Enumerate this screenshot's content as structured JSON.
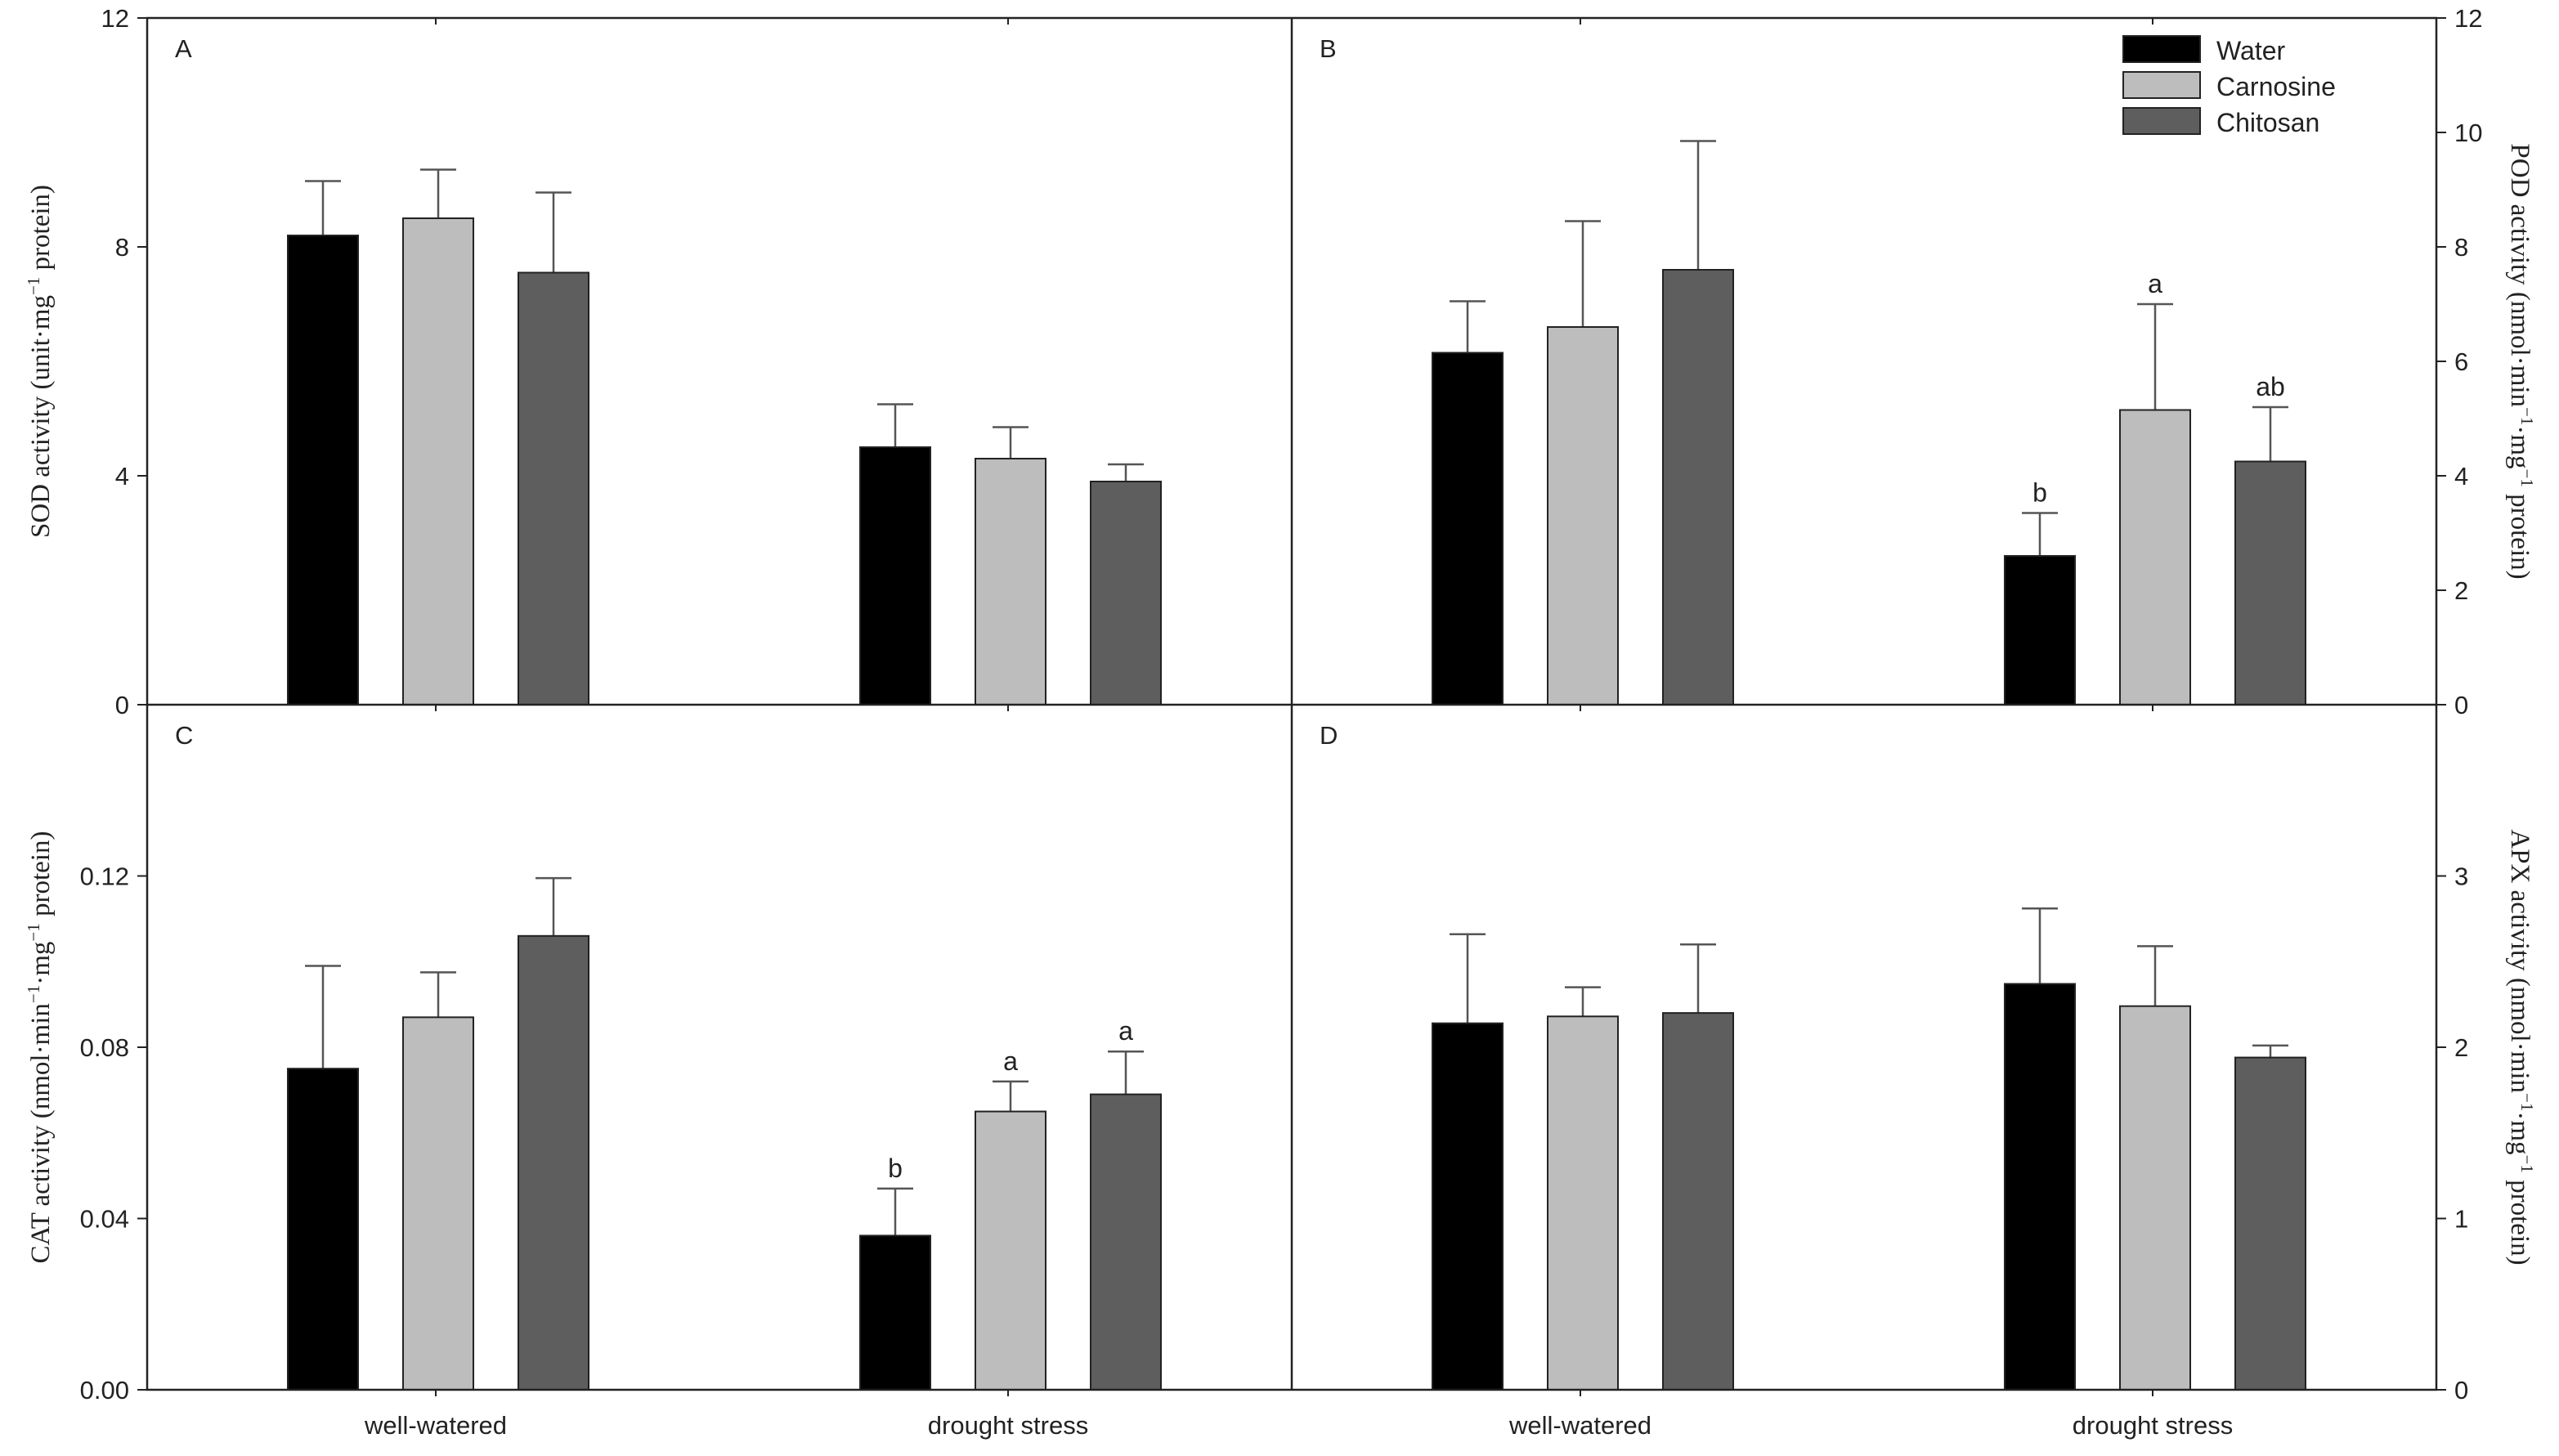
{
  "chart_data": [
    {
      "id": "A",
      "type": "bar",
      "panel_label": "A",
      "categories": [
        "well-watered",
        "drought stress"
      ],
      "series": [
        {
          "name": "Water",
          "values": [
            8.2,
            4.5
          ],
          "errors": [
            0.95,
            0.75
          ]
        },
        {
          "name": "Carnosine",
          "values": [
            8.5,
            4.3
          ],
          "errors": [
            0.85,
            0.55
          ]
        },
        {
          "name": "Chitosan",
          "values": [
            7.55,
            3.9
          ],
          "errors": [
            1.4,
            0.3
          ]
        }
      ],
      "ylim": [
        0,
        12
      ],
      "yticks": [
        "0",
        "4",
        "8",
        "12"
      ],
      "ylabel": {
        "main": "SOD activity (unit·mg",
        "sup": "−1",
        "tail": " protein)"
      },
      "axis_side": "left",
      "annotations": [
        [
          "",
          "",
          ""
        ],
        [
          "",
          "",
          ""
        ]
      ]
    },
    {
      "id": "B",
      "type": "bar",
      "panel_label": "B",
      "categories": [
        "well-watered",
        "drought stress"
      ],
      "series": [
        {
          "name": "Water",
          "values": [
            6.15,
            2.6
          ],
          "errors": [
            0.9,
            0.75
          ]
        },
        {
          "name": "Carnosine",
          "values": [
            6.6,
            5.15
          ],
          "errors": [
            1.85,
            1.85
          ]
        },
        {
          "name": "Chitosan",
          "values": [
            7.6,
            4.25
          ],
          "errors": [
            2.25,
            0.95
          ]
        }
      ],
      "ylim": [
        0,
        12
      ],
      "yticks": [
        "0",
        "2",
        "4",
        "6",
        "8",
        "10",
        "12"
      ],
      "ylabel": {
        "main": "POD activity (nmol·min",
        "sup": "−1",
        "mid": "·mg",
        "sup2": "−1",
        "tail": " protein)"
      },
      "axis_side": "right",
      "annotations": [
        [
          "",
          "",
          ""
        ],
        [
          "b",
          "a",
          "ab"
        ]
      ]
    },
    {
      "id": "C",
      "type": "bar",
      "panel_label": "C",
      "categories": [
        "well-watered",
        "drought stress"
      ],
      "series": [
        {
          "name": "Water",
          "values": [
            0.075,
            0.036
          ],
          "errors": [
            0.024,
            0.011
          ]
        },
        {
          "name": "Carnosine",
          "values": [
            0.087,
            0.065
          ],
          "errors": [
            0.0105,
            0.007
          ]
        },
        {
          "name": "Chitosan",
          "values": [
            0.106,
            0.069
          ],
          "errors": [
            0.0135,
            0.01
          ]
        }
      ],
      "ylim": [
        0,
        0.16
      ],
      "yticks": [
        "0.00",
        "0.04",
        "0.08",
        "0.12"
      ],
      "ylabel": {
        "main": "CAT activity  (nmol·min",
        "sup": "−1",
        "mid": "·mg",
        "sup2": "−1",
        "tail": " protein)"
      },
      "axis_side": "left",
      "annotations": [
        [
          "",
          "",
          ""
        ],
        [
          "b",
          "a",
          "a"
        ]
      ]
    },
    {
      "id": "D",
      "type": "bar",
      "panel_label": "D",
      "categories": [
        "well-watered",
        "drought stress"
      ],
      "series": [
        {
          "name": "Water",
          "values": [
            2.14,
            2.37
          ],
          "errors": [
            0.52,
            0.44
          ]
        },
        {
          "name": "Carnosine",
          "values": [
            2.18,
            2.24
          ],
          "errors": [
            0.17,
            0.35
          ]
        },
        {
          "name": "Chitosan",
          "values": [
            2.2,
            1.94
          ],
          "errors": [
            0.4,
            0.07
          ]
        }
      ],
      "ylim": [
        0,
        4
      ],
      "yticks": [
        "0",
        "1",
        "2",
        "3"
      ],
      "ylabel": {
        "main": "APX activity (nmol·min",
        "sup": "−1",
        "mid": "·mg",
        "sup2": "−1",
        "tail": " protein)"
      },
      "axis_side": "right",
      "annotations": [
        [
          "",
          "",
          ""
        ],
        [
          "",
          "",
          ""
        ]
      ]
    }
  ],
  "legend": {
    "position": "top-right of panel B",
    "items": [
      {
        "label": "Water",
        "color": "#000000"
      },
      {
        "label": "Carnosine",
        "color": "#bdbdbd"
      },
      {
        "label": "Chitosan",
        "color": "#5e5e5e"
      }
    ]
  },
  "colors": {
    "axis": "#222222",
    "error_bar": "#555555"
  }
}
